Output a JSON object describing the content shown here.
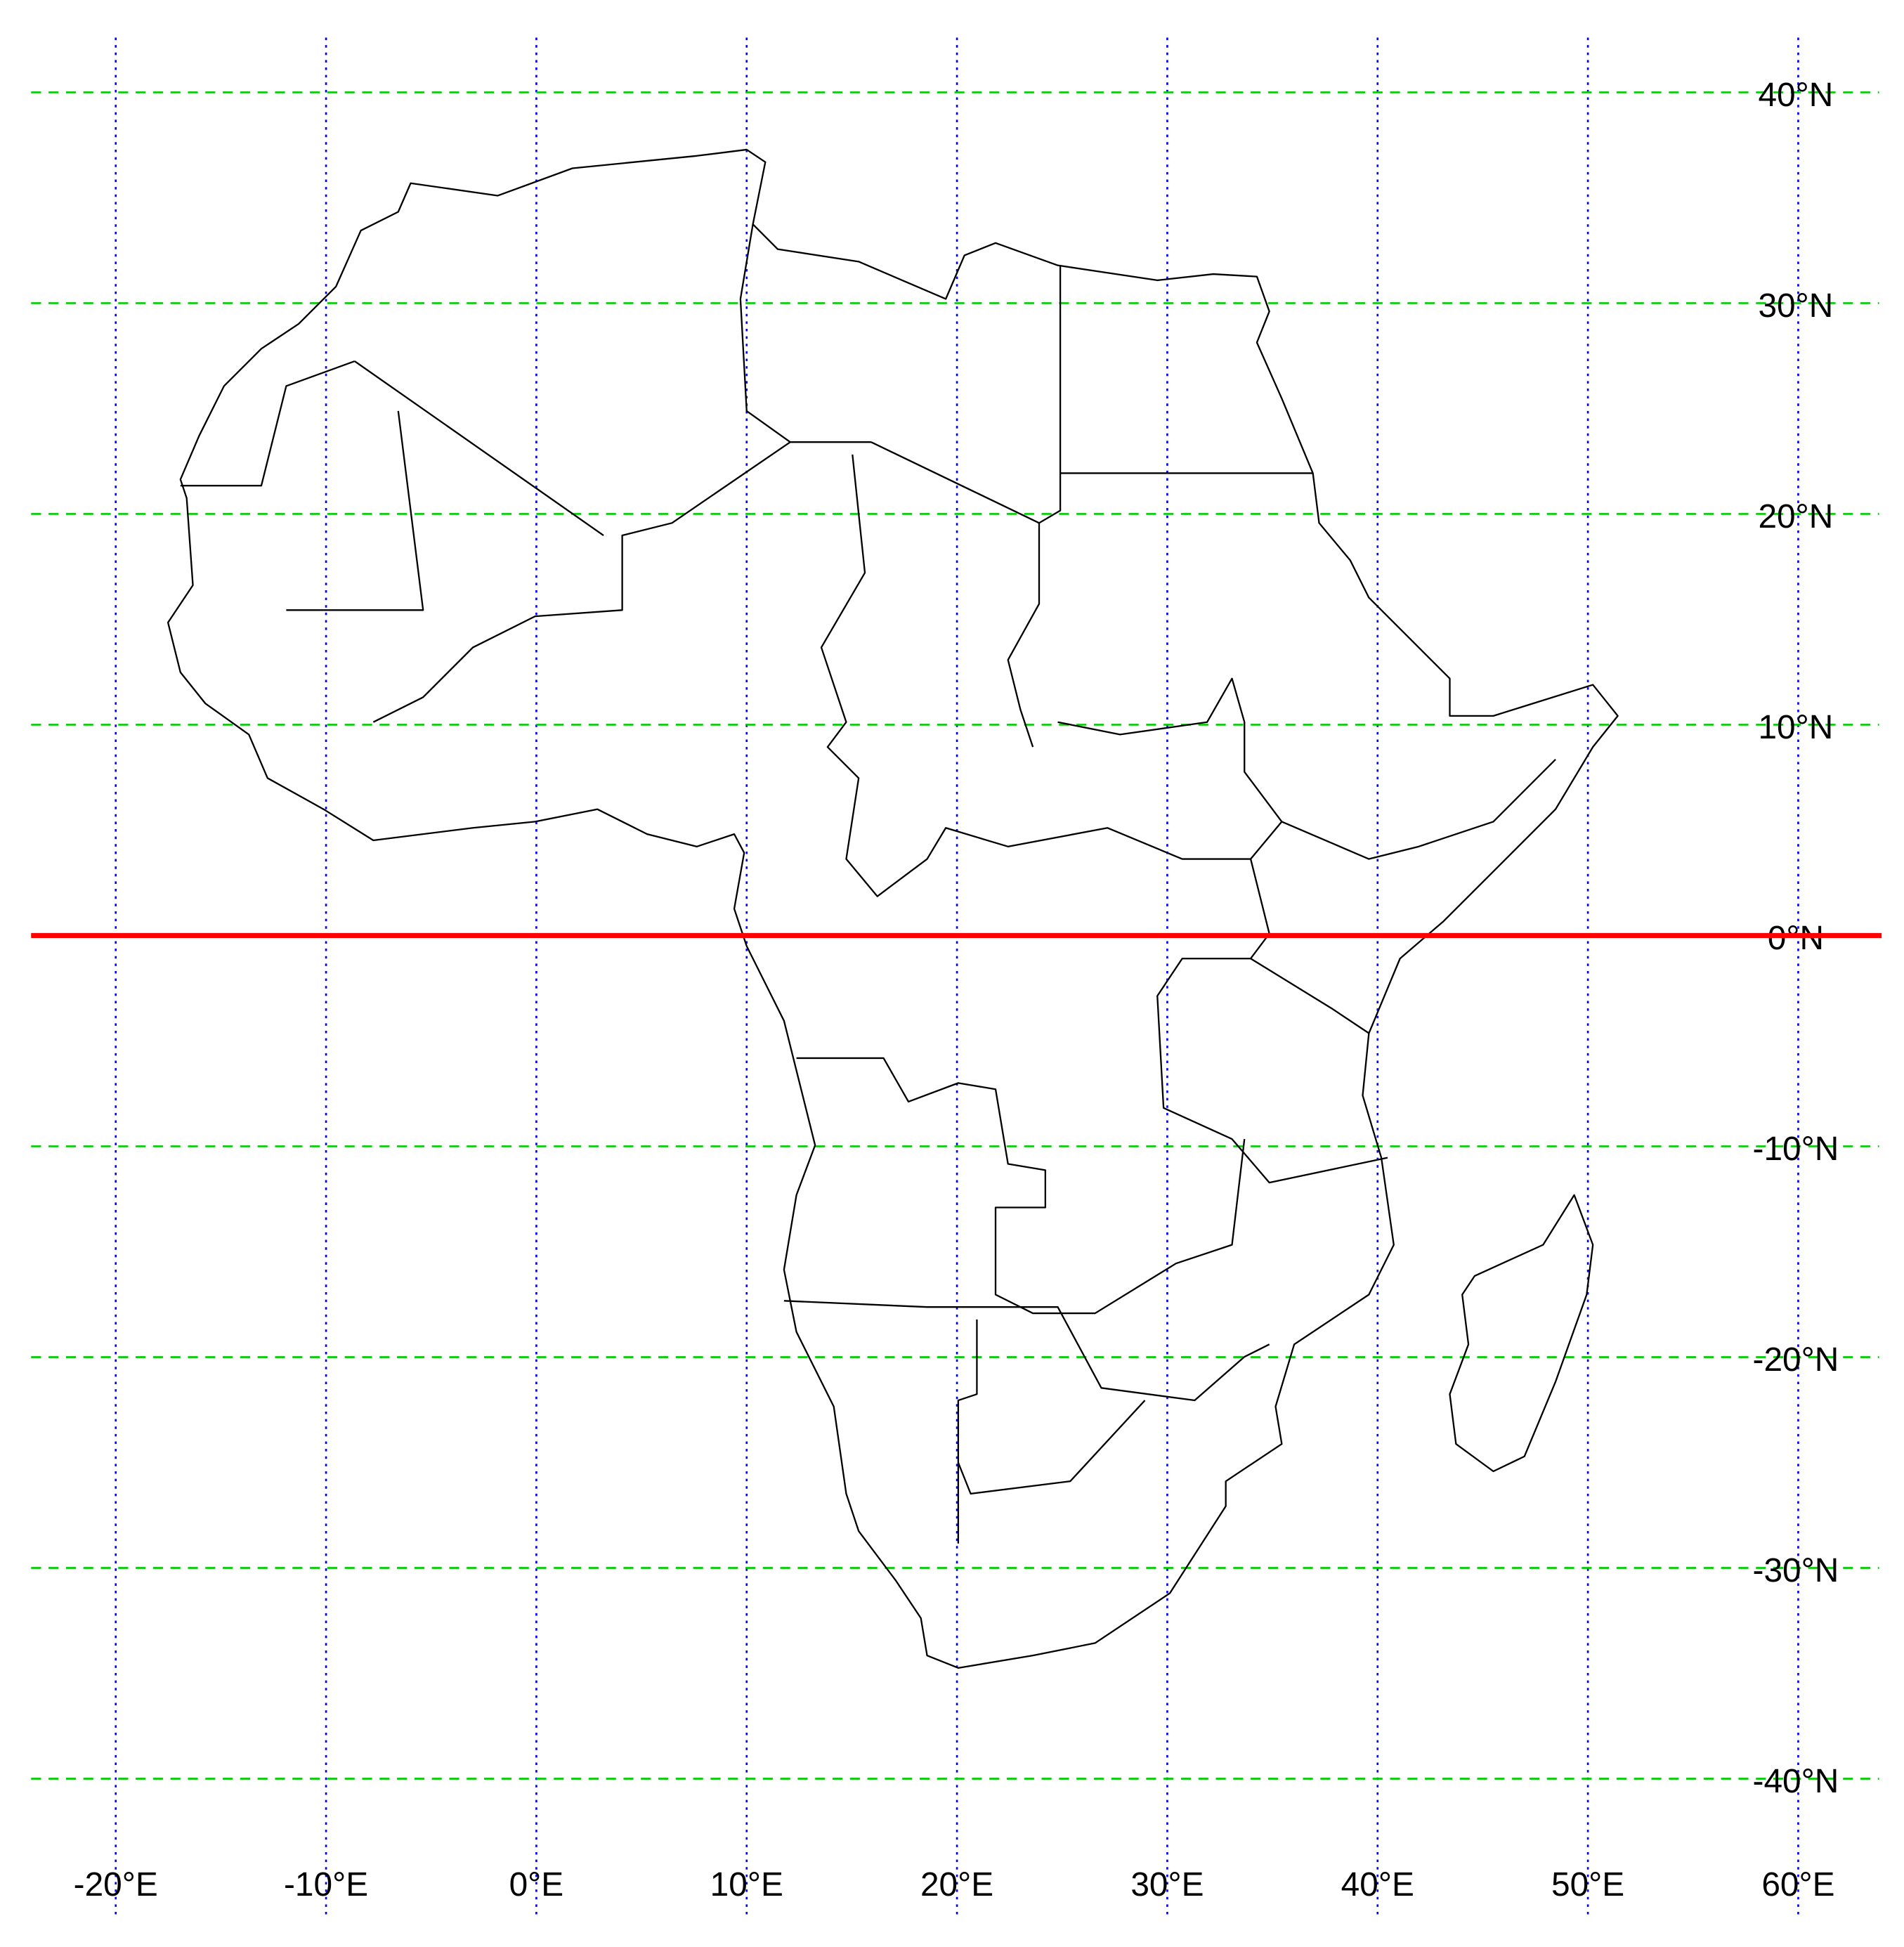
{
  "map": {
    "lat_ticks": [
      {
        "value": 40,
        "label": "40°N"
      },
      {
        "value": 30,
        "label": "30°N"
      },
      {
        "value": 20,
        "label": "20°N"
      },
      {
        "value": 10,
        "label": "10°N"
      },
      {
        "value": 0,
        "label": "0°N"
      },
      {
        "value": -10,
        "label": "-10°N"
      },
      {
        "value": -20,
        "label": "-20°N"
      },
      {
        "value": -30,
        "label": "-30°N"
      },
      {
        "value": -40,
        "label": "-40°N"
      }
    ],
    "lon_ticks": [
      {
        "value": -20,
        "label": "-20°E"
      },
      {
        "value": -10,
        "label": "-10°E"
      },
      {
        "value": 0,
        "label": "0°E"
      },
      {
        "value": 10,
        "label": "10°E"
      },
      {
        "value": 20,
        "label": "20°E"
      },
      {
        "value": 30,
        "label": "30°E"
      },
      {
        "value": 40,
        "label": "40°E"
      },
      {
        "value": 50,
        "label": "50°E"
      },
      {
        "value": 60,
        "label": "60°E"
      }
    ],
    "lat_grid_color": "#00cc00",
    "lon_grid_color": "#0000ff",
    "equator": {
      "value": 0,
      "color": "#ff0000"
    }
  }
}
